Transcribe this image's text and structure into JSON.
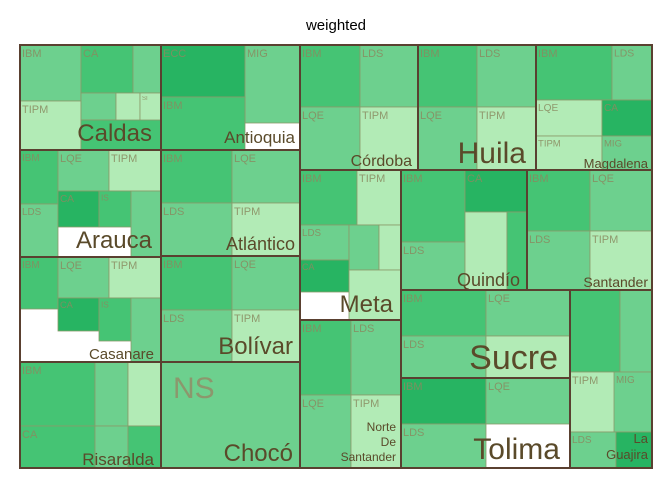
{
  "chart_data": {
    "type": "treemap",
    "title": "weighted",
    "colors": {
      "dark": "#27b462",
      "mid": "#45c474",
      "light": "#6dd08e",
      "pale": "#b2ebb6",
      "cell_border": "#8a9a6a",
      "region_border": "#5a4030",
      "region_text": "#5a4a2a"
    },
    "regions": [
      {
        "name": "Caldas",
        "cells": [
          {
            "label": "IBM",
            "shade": "light"
          },
          {
            "label": "CA",
            "shade": "mid"
          },
          {
            "label": "",
            "shade": "light"
          },
          {
            "label": "TIPM",
            "shade": "pale"
          },
          {
            "label": "",
            "shade": "light"
          },
          {
            "label": "",
            "shade": "pale"
          },
          {
            "label": "SI",
            "shade": "pale"
          },
          {
            "label": "",
            "shade": "mid"
          }
        ]
      },
      {
        "name": "Antioquia",
        "cells": [
          {
            "label": "ECC",
            "shade": "dark"
          },
          {
            "label": "MIG",
            "shade": "light"
          },
          {
            "label": "IBM",
            "shade": "mid"
          }
        ]
      },
      {
        "name": "Córdoba",
        "cells": [
          {
            "label": "IBM",
            "shade": "mid"
          },
          {
            "label": "LDS",
            "shade": "light"
          },
          {
            "label": "LQE",
            "shade": "light"
          },
          {
            "label": "TIPM",
            "shade": "pale"
          }
        ]
      },
      {
        "name": "Huila",
        "cells": [
          {
            "label": "IBM",
            "shade": "mid"
          },
          {
            "label": "LDS",
            "shade": "light"
          },
          {
            "label": "LQE",
            "shade": "light"
          },
          {
            "label": "TIPM",
            "shade": "pale"
          }
        ]
      },
      {
        "name": "Magdalena",
        "cells": [
          {
            "label": "IBM",
            "shade": "mid"
          },
          {
            "label": "LDS",
            "shade": "light"
          },
          {
            "label": "LQE",
            "shade": "pale"
          },
          {
            "label": "CA",
            "shade": "dark"
          },
          {
            "label": "TIPM",
            "shade": "pale"
          },
          {
            "label": "MIG",
            "shade": "light"
          }
        ]
      },
      {
        "name": "Arauca",
        "cells": [
          {
            "label": "IBM",
            "shade": "mid"
          },
          {
            "label": "LQE",
            "shade": "light"
          },
          {
            "label": "TIPM",
            "shade": "pale"
          },
          {
            "label": "LDS",
            "shade": "light"
          },
          {
            "label": "CA",
            "shade": "dark"
          },
          {
            "label": "IS",
            "shade": "mid"
          },
          {
            "label": "",
            "shade": "light"
          }
        ]
      },
      {
        "name": "Atlántico",
        "cells": [
          {
            "label": "IBM",
            "shade": "mid"
          },
          {
            "label": "LQE",
            "shade": "light"
          },
          {
            "label": "LDS",
            "shade": "light"
          },
          {
            "label": "TIPM",
            "shade": "pale"
          }
        ]
      },
      {
        "name": "Meta",
        "cells": [
          {
            "label": "IBM",
            "shade": "mid"
          },
          {
            "label": "TIPM",
            "shade": "pale"
          },
          {
            "label": "LDS",
            "shade": "light"
          },
          {
            "label": "",
            "shade": "light"
          },
          {
            "label": "",
            "shade": "pale"
          },
          {
            "label": "CA",
            "shade": "dark"
          },
          {
            "label": "",
            "shade": "pale"
          }
        ]
      },
      {
        "name": "Quindío",
        "cells": [
          {
            "label": "IBM",
            "shade": "mid"
          },
          {
            "label": "CA",
            "shade": "dark"
          },
          {
            "label": "LDS",
            "shade": "light"
          },
          {
            "label": "",
            "shade": "pale"
          },
          {
            "label": "",
            "shade": "mid"
          }
        ]
      },
      {
        "name": "Santander",
        "cells": [
          {
            "label": "IBM",
            "shade": "mid"
          },
          {
            "label": "LQE",
            "shade": "light"
          },
          {
            "label": "LDS",
            "shade": "light"
          },
          {
            "label": "TIPM",
            "shade": "pale"
          }
        ]
      },
      {
        "name": "Casanare",
        "cells": [
          {
            "label": "IBM",
            "shade": "mid"
          },
          {
            "label": "LQE",
            "shade": "light"
          },
          {
            "label": "TIPM",
            "shade": "pale"
          },
          {
            "label": "CA",
            "shade": "dark"
          },
          {
            "label": "IS",
            "shade": "mid"
          },
          {
            "label": "",
            "shade": "light"
          }
        ]
      },
      {
        "name": "Bolívar",
        "cells": [
          {
            "label": "IBM",
            "shade": "mid"
          },
          {
            "label": "LQE",
            "shade": "light"
          },
          {
            "label": "LDS",
            "shade": "light"
          },
          {
            "label": "TIPM",
            "shade": "pale"
          }
        ]
      },
      {
        "name": "Sucre",
        "cells": [
          {
            "label": "IBM",
            "shade": "mid"
          },
          {
            "label": "LQE",
            "shade": "light"
          },
          {
            "label": "LDS",
            "shade": "light"
          },
          {
            "label": "",
            "shade": "pale"
          }
        ]
      },
      {
        "name": "Risaralda",
        "cells": [
          {
            "label": "IBM",
            "shade": "mid"
          },
          {
            "label": "",
            "shade": "light"
          },
          {
            "label": "",
            "shade": "pale"
          },
          {
            "label": "CA",
            "shade": "mid"
          },
          {
            "label": "",
            "shade": "light"
          },
          {
            "label": "",
            "shade": "mid"
          }
        ]
      },
      {
        "name": "Chocó",
        "cells": [
          {
            "label": "NS",
            "shade": "light"
          }
        ]
      },
      {
        "name": "Norte De Santander",
        "cells": [
          {
            "label": "IBM",
            "shade": "mid"
          },
          {
            "label": "LDS",
            "shade": "light"
          },
          {
            "label": "LQE",
            "shade": "light"
          },
          {
            "label": "TIPM",
            "shade": "pale"
          }
        ]
      },
      {
        "name": "Tolima",
        "cells": [
          {
            "label": "IBM",
            "shade": "dark"
          },
          {
            "label": "LQE",
            "shade": "light"
          },
          {
            "label": "LDS",
            "shade": "light"
          }
        ]
      },
      {
        "name": "La Guajira",
        "cells": [
          {
            "label": "",
            "shade": "mid"
          },
          {
            "label": "",
            "shade": "light"
          },
          {
            "label": "TIPM",
            "shade": "pale"
          },
          {
            "label": "MIG",
            "shade": "light"
          },
          {
            "label": "LDS",
            "shade": "light"
          },
          {
            "label": "",
            "shade": "dark"
          }
        ]
      }
    ]
  }
}
